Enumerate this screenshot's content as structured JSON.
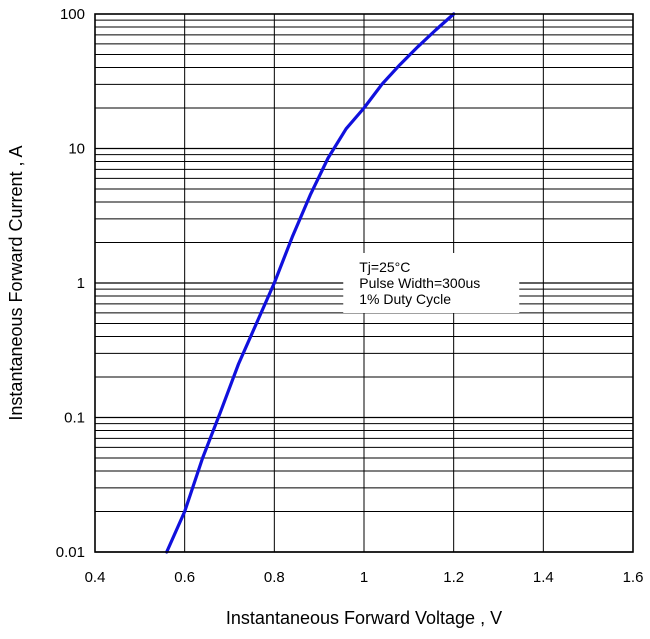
{
  "chart_data": {
    "type": "line",
    "title": "",
    "xlabel": "Instantaneous Forward Voltage , V",
    "ylabel": "Instantaneous Forward Current , A",
    "xlim": [
      0.4,
      1.6
    ],
    "ylim": [
      0.01,
      100
    ],
    "y_scale": "log",
    "grid": true,
    "x_ticks": [
      0.4,
      0.6,
      0.8,
      1.0,
      1.2,
      1.4,
      1.6
    ],
    "x_tick_labels": [
      "0.4",
      "0.6",
      "0.8",
      "1",
      "1.2",
      "1.4",
      "1.6"
    ],
    "y_ticks": [
      0.01,
      0.1,
      1,
      10,
      100
    ],
    "y_tick_labels": [
      "0.01",
      "0.1",
      "1",
      "10",
      "100"
    ],
    "series": [
      {
        "color": "#1010dd",
        "x": [
          0.56,
          0.6,
          0.64,
          0.68,
          0.72,
          0.76,
          0.8,
          0.84,
          0.88,
          0.92,
          0.96,
          1.0,
          1.04,
          1.08,
          1.12,
          1.16,
          1.2
        ],
        "y": [
          0.01,
          0.02,
          0.05,
          0.11,
          0.25,
          0.5,
          1.0,
          2.2,
          4.5,
          8.5,
          14.0,
          20.0,
          30.0,
          42.0,
          57.0,
          76.0,
          100.0
        ]
      }
    ],
    "annotations": [
      {
        "lines": [
          "Tj=25°C",
          "Pulse Width=300us",
          "1% Duty Cycle"
        ],
        "x": 1.15,
        "y": 1.0
      }
    ]
  }
}
